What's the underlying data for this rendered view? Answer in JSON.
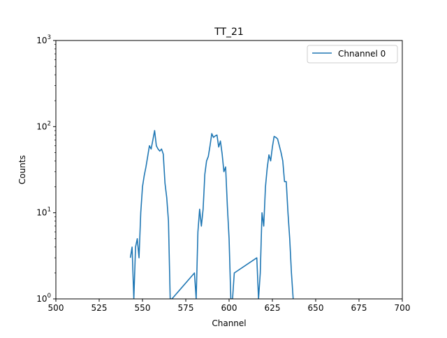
{
  "chart_data": {
    "type": "line",
    "title": "TT_21",
    "xlabel": "Channel",
    "ylabel": "Counts",
    "xlim": [
      500,
      700
    ],
    "ylim": [
      1,
      1000
    ],
    "yscale": "log",
    "grid": false,
    "legend_position": "top-right",
    "x_ticks": [
      500,
      525,
      550,
      575,
      600,
      625,
      650,
      675,
      700
    ],
    "x_tick_labels": [
      "500",
      "525",
      "550",
      "575",
      "600",
      "625",
      "650",
      "675",
      "700"
    ],
    "y_ticks": [
      1,
      10,
      100,
      1000
    ],
    "y_tick_labels": [
      {
        "base": "10",
        "exp": "0"
      },
      {
        "base": "10",
        "exp": "1"
      },
      {
        "base": "10",
        "exp": "2"
      },
      {
        "base": "10",
        "exp": "3"
      }
    ],
    "series": [
      {
        "name": "Chnannel 0",
        "color": "#1f77b4",
        "x": [
          543,
          544,
          545,
          546,
          547,
          548,
          549,
          550,
          551,
          552,
          553,
          554,
          555,
          556,
          557,
          558,
          559,
          560,
          561,
          562,
          563,
          564,
          565,
          566,
          567,
          580,
          581,
          582,
          583,
          584,
          585,
          586,
          587,
          588,
          589,
          590,
          591,
          592,
          593,
          594,
          595,
          596,
          597,
          598,
          599,
          600,
          601,
          602,
          603,
          616,
          617,
          618,
          619,
          620,
          621,
          622,
          623,
          624,
          625,
          626,
          627,
          628,
          629,
          630,
          631,
          632,
          633,
          634,
          635,
          636,
          637
        ],
        "y": [
          3,
          4,
          1,
          4,
          5,
          3,
          10,
          20,
          27,
          34,
          45,
          60,
          55,
          70,
          90,
          60,
          55,
          52,
          55,
          48,
          22,
          15,
          8,
          1,
          1,
          2,
          1,
          6,
          11,
          7,
          11,
          28,
          40,
          45,
          60,
          83,
          75,
          78,
          80,
          58,
          68,
          48,
          30,
          34,
          12,
          5,
          1,
          1,
          2,
          3,
          1,
          2,
          10,
          7,
          20,
          33,
          47,
          40,
          58,
          77,
          75,
          72,
          60,
          50,
          40,
          23,
          23,
          10,
          5,
          2,
          1
        ]
      }
    ]
  }
}
